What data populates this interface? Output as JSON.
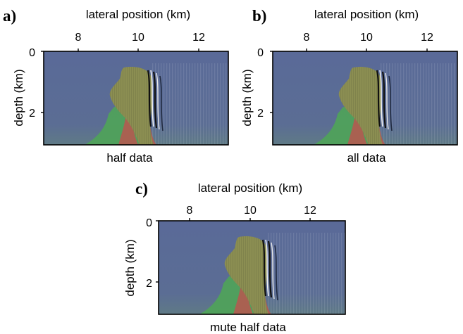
{
  "figure": {
    "x_label": "lateral position (km)",
    "y_label": "depth (km)",
    "x_ticks": [
      "8",
      "10",
      "12"
    ],
    "y_ticks": [
      "0",
      "2"
    ]
  },
  "panels": [
    {
      "letter": "a)",
      "caption": "half data"
    },
    {
      "letter": "b)",
      "caption": "all data"
    },
    {
      "letter": "c)",
      "caption": "mute half data"
    }
  ],
  "colors": {
    "background": "#5a6b96",
    "salt_body": "#8b8e52",
    "flank_green": "#4fa458",
    "root_red": "#b25a50",
    "frame": "#000000"
  }
}
